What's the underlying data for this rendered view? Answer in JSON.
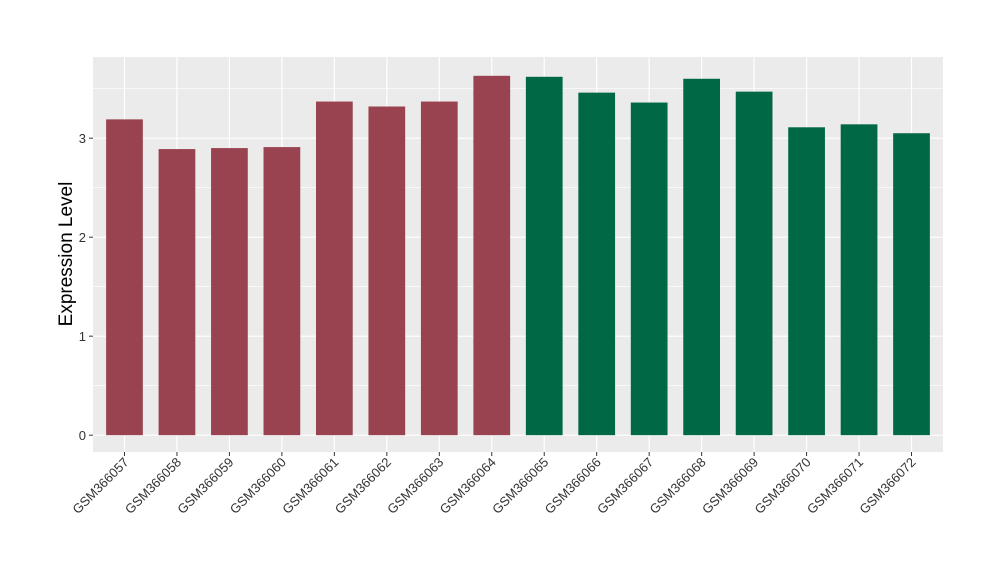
{
  "chart_data": {
    "type": "bar",
    "title": "",
    "xlabel": "",
    "ylabel": "Expression Level",
    "ylim": [
      -0.17,
      3.82
    ],
    "yticks": [
      0,
      1,
      2,
      3
    ],
    "grid": true,
    "legend": "none",
    "categories": [
      "GSM366057",
      "GSM366058",
      "GSM366059",
      "GSM366060",
      "GSM366061",
      "GSM366062",
      "GSM366063",
      "GSM366064",
      "GSM366065",
      "GSM366066",
      "GSM366067",
      "GSM366068",
      "GSM366069",
      "GSM366070",
      "GSM366071",
      "GSM366072"
    ],
    "values": [
      3.19,
      2.89,
      2.9,
      2.91,
      3.37,
      3.32,
      3.37,
      3.63,
      3.62,
      3.46,
      3.36,
      3.6,
      3.47,
      3.11,
      3.14,
      3.05
    ],
    "group": [
      "a",
      "a",
      "a",
      "a",
      "a",
      "a",
      "a",
      "a",
      "b",
      "b",
      "b",
      "b",
      "b",
      "b",
      "b",
      "b"
    ],
    "colors": {
      "a": "#9a4350",
      "b": "#006845"
    },
    "panel_background": "#ebebeb",
    "grid_color": "#ffffff"
  }
}
